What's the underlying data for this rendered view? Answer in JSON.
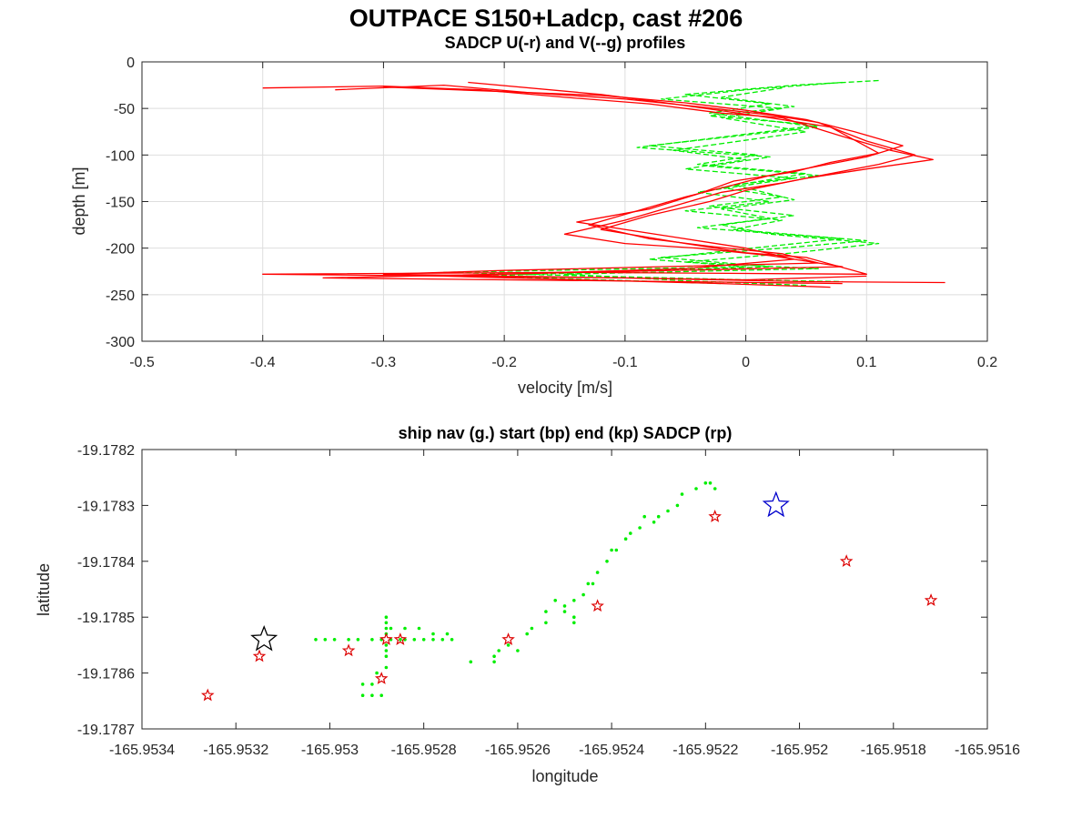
{
  "figure_title": "OUTPACE S150+Ladcp, cast #206",
  "chart_data": [
    {
      "type": "line",
      "title": "SADCP U(-r) and V(--g) profiles",
      "xlabel": "velocity [m/s]",
      "ylabel": "depth [m]",
      "xlim": [
        -0.5,
        0.2
      ],
      "ylim": [
        -300,
        0
      ],
      "xticks": [
        -0.5,
        -0.4,
        -0.3,
        -0.2,
        -0.1,
        0,
        0.1,
        0.2
      ],
      "xtick_labels": [
        "-0.5",
        "-0.4",
        "-0.3",
        "-0.2",
        "-0.1",
        "0",
        "0.1",
        "0.2"
      ],
      "yticks": [
        -300,
        -250,
        -200,
        -150,
        -100,
        -50,
        0
      ],
      "ytick_labels": [
        "-300",
        "-250",
        "-200",
        "-150",
        "-100",
        "-50",
        "0"
      ],
      "grid": true,
      "series": [
        {
          "color": "#ff0000",
          "style": "solid",
          "profiles": [
            {
              "x": [
                -0.4,
                -0.3,
                -0.22,
                -0.15,
                -0.08,
                -0.02,
                0.03,
                0.08,
                0.12,
                0.155,
                0.1,
                0.05,
                0.0,
                -0.03,
                -0.08,
                -0.12,
                -0.05,
                0.0,
                0.05,
                0.1,
                -0.15,
                -0.4,
                -0.1,
                0.05,
                0.165
              ],
              "y": [
                -28,
                -26,
                -30,
                -38,
                -45,
                -55,
                -60,
                -80,
                -95,
                -105,
                -115,
                -125,
                -138,
                -150,
                -165,
                -180,
                -195,
                -205,
                -210,
                -228,
                -226,
                -228,
                -232,
                -236,
                -237
              ]
            },
            {
              "x": [
                -0.34,
                -0.25,
                -0.18,
                -0.1,
                -0.04,
                0.02,
                0.06,
                0.1,
                0.14,
                0.11,
                0.07,
                0.03,
                -0.02,
                -0.06,
                -0.1,
                -0.15,
                -0.1,
                -0.04,
                0.02,
                0.08,
                -0.1,
                -0.35,
                -0.05,
                0.08
              ],
              "y": [
                -30,
                -25,
                -33,
                -40,
                -48,
                -57,
                -65,
                -85,
                -100,
                -110,
                -120,
                -130,
                -140,
                -155,
                -170,
                -185,
                -195,
                -200,
                -208,
                -220,
                -225,
                -232,
                -236,
                -238
              ]
            },
            {
              "x": [
                -0.3,
                -0.2,
                -0.12,
                -0.05,
                0.0,
                0.05,
                0.09,
                0.13,
                0.1,
                0.06,
                0.02,
                -0.01,
                -0.05,
                -0.09,
                -0.13,
                -0.08,
                -0.03,
                0.03,
                0.06,
                -0.2,
                -0.3,
                0.0,
                0.1
              ],
              "y": [
                -27,
                -32,
                -36,
                -44,
                -52,
                -62,
                -75,
                -90,
                -102,
                -112,
                -122,
                -132,
                -145,
                -160,
                -175,
                -190,
                -198,
                -206,
                -216,
                -224,
                -228,
                -234,
                -230
              ]
            },
            {
              "x": [
                -0.23,
                -0.12,
                -0.06,
                0.01,
                0.07,
                0.11,
                0.07,
                0.04,
                -0.01,
                -0.04,
                -0.08,
                -0.14,
                -0.06,
                0.0,
                0.04,
                -0.05,
                -0.25,
                -0.02,
                0.07
              ],
              "y": [
                -22,
                -35,
                -45,
                -58,
                -70,
                -98,
                -108,
                -118,
                -128,
                -142,
                -158,
                -172,
                -188,
                -200,
                -212,
                -222,
                -230,
                -238,
                -242
              ]
            }
          ]
        },
        {
          "color": "#00ee00",
          "style": "dashed",
          "profiles": [
            {
              "x": [
                0.11,
                0.04,
                -0.05,
                0.02,
                -0.03,
                0.06,
                -0.08,
                0.01,
                -0.04,
                0.05,
                -0.02,
                0.03,
                -0.03,
                0.04,
                -0.02,
                0.02,
                0.11,
                0.04,
                -0.05,
                0.06,
                -0.15,
                -0.05,
                0.05
              ],
              "y": [
                -20,
                -25,
                -35,
                -45,
                -55,
                -70,
                -90,
                -100,
                -110,
                -120,
                -135,
                -145,
                -155,
                -165,
                -175,
                -185,
                -195,
                -205,
                -215,
                -222,
                -228,
                -235,
                -240
              ]
            },
            {
              "x": [
                0.08,
                0.0,
                -0.07,
                0.03,
                -0.02,
                0.05,
                -0.06,
                0.0,
                -0.05,
                0.04,
                -0.04,
                0.02,
                -0.05,
                0.03,
                -0.01,
                0.1,
                0.03,
                -0.07,
                0.02,
                -0.22,
                -0.02
              ],
              "y": [
                -22,
                -30,
                -40,
                -50,
                -60,
                -75,
                -95,
                -105,
                -115,
                -125,
                -140,
                -150,
                -160,
                -170,
                -180,
                -192,
                -200,
                -210,
                -220,
                -230,
                -238
              ]
            },
            {
              "x": [
                0.03,
                -0.02,
                0.04,
                -0.03,
                0.06,
                -0.09,
                0.02,
                -0.03,
                0.06,
                -0.01,
                0.04,
                -0.02,
                0.02,
                -0.04,
                0.08,
                0.02,
                -0.08,
                0.0,
                -0.25,
                0.0,
                0.08
              ],
              "y": [
                -28,
                -38,
                -48,
                -58,
                -68,
                -92,
                -102,
                -112,
                -122,
                -132,
                -148,
                -158,
                -168,
                -178,
                -190,
                -198,
                -212,
                -220,
                -226,
                -234,
                -236
              ]
            }
          ]
        }
      ]
    },
    {
      "type": "scatter",
      "title": "ship nav (g.) start (bp) end (kp) SADCP (rp)",
      "xlabel": "longitude",
      "ylabel": "latitude",
      "xlim": [
        -165.9534,
        -165.9516
      ],
      "ylim": [
        -19.1787,
        -19.1782
      ],
      "xticks": [
        -165.9534,
        -165.9532,
        -165.953,
        -165.9528,
        -165.9526,
        -165.9524,
        -165.9522,
        -165.952,
        -165.9518,
        -165.9516
      ],
      "xtick_labels": [
        "-165.9534",
        "-165.9532",
        "-165.953",
        "-165.9528",
        "-165.9526",
        "-165.9524",
        "-165.9522",
        "-165.952",
        "-165.9518",
        "-165.9516"
      ],
      "yticks": [
        -19.1787,
        -19.1786,
        -19.1785,
        -19.1784,
        -19.1783,
        -19.1782
      ],
      "ytick_labels": [
        "-19.1787",
        "-19.1786",
        "-19.1785",
        "-19.1784",
        "-19.1783",
        "-19.1782"
      ],
      "grid": false,
      "ship_nav": {
        "color": "#00ee00",
        "x": [
          -165.95303,
          -165.95301,
          -165.95299,
          -165.95296,
          -165.95294,
          -165.95291,
          -165.95289,
          -165.95287,
          -165.95285,
          -165.95284,
          -165.95282,
          -165.9528,
          -165.95278,
          -165.95276,
          -165.95274,
          -165.95288,
          -165.95288,
          -165.95288,
          -165.95288,
          -165.95288,
          -165.95288,
          -165.95288,
          -165.95288,
          -165.95287,
          -165.95284,
          -165.95281,
          -165.95278,
          -165.95275,
          -165.9529,
          -165.95291,
          -165.95293,
          -165.95293,
          -165.95291,
          -165.95289,
          -165.9527,
          -165.95265,
          -165.95265,
          -165.95264,
          -165.95262,
          -165.9526,
          -165.95258,
          -165.95257,
          -165.95254,
          -165.95254,
          -165.95252,
          -165.9525,
          -165.9525,
          -165.95248,
          -165.95248,
          -165.95248,
          -165.95246,
          -165.95245,
          -165.95244,
          -165.95243,
          -165.95241,
          -165.9524,
          -165.95239,
          -165.95237,
          -165.95236,
          -165.95234,
          -165.95233,
          -165.95231,
          -165.9523,
          -165.95228,
          -165.95226,
          -165.95225,
          -165.95222,
          -165.9522,
          -165.95219,
          -165.95218
        ],
        "y": [
          -19.17854,
          -19.17854,
          -19.17854,
          -19.17854,
          -19.17854,
          -19.17854,
          -19.17854,
          -19.17854,
          -19.17854,
          -19.17854,
          -19.17854,
          -19.17854,
          -19.17854,
          -19.17854,
          -19.17854,
          -19.1785,
          -19.17851,
          -19.17852,
          -19.17853,
          -19.17855,
          -19.17856,
          -19.17857,
          -19.17859,
          -19.17852,
          -19.17852,
          -19.17852,
          -19.17853,
          -19.17853,
          -19.1786,
          -19.17862,
          -19.17862,
          -19.17864,
          -19.17864,
          -19.17864,
          -19.17858,
          -19.17858,
          -19.17857,
          -19.17856,
          -19.17855,
          -19.17856,
          -19.17853,
          -19.17852,
          -19.17851,
          -19.17849,
          -19.17847,
          -19.17848,
          -19.17849,
          -19.1785,
          -19.17851,
          -19.17847,
          -19.17846,
          -19.17844,
          -19.17844,
          -19.17842,
          -19.1784,
          -19.17838,
          -19.17838,
          -19.17836,
          -19.17835,
          -19.17834,
          -19.17832,
          -19.17833,
          -19.17832,
          -19.17831,
          -19.1783,
          -19.17828,
          -19.17827,
          -19.17826,
          -19.17826,
          -19.17827
        ]
      },
      "start_point": {
        "color": "#0000cc",
        "x": -165.95205,
        "y": -19.1783
      },
      "end_point": {
        "color": "#000000",
        "x": -165.95314,
        "y": -19.17854
      },
      "sadcp_points": {
        "color": "#dd0000",
        "x": [
          -165.95326,
          -165.95315,
          -165.95296,
          -165.95289,
          -165.95288,
          -165.95285,
          -165.95262,
          -165.95243,
          -165.95218,
          -165.9519,
          -165.95172
        ],
        "y": [
          -19.17864,
          -19.17857,
          -19.17856,
          -19.17861,
          -19.17854,
          -19.17854,
          -19.17854,
          -19.17848,
          -19.17832,
          -19.1784,
          -19.17847
        ]
      }
    }
  ]
}
